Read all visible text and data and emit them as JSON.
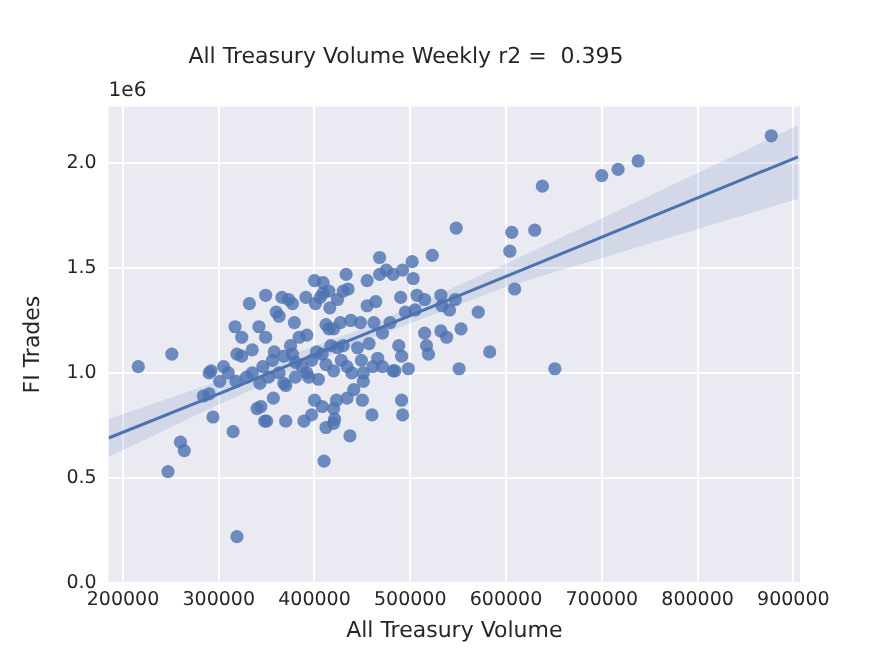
{
  "chart_data": {
    "type": "scatter",
    "title": "All Treasury Volume Weekly r2 =  0.395",
    "xlabel": "All Treasury Volume",
    "ylabel": "FI Trades",
    "annotations": [
      "1e6"
    ],
    "xlim": [
      185000,
      907000
    ],
    "xticks": [
      200000,
      300000,
      400000,
      500000,
      600000,
      700000,
      800000,
      900000
    ],
    "ylim": [
      0,
      2.27
    ],
    "yticks": [
      {
        "value": 0,
        "label": "0.0"
      },
      0.5,
      {
        "value": 1,
        "label": "1.0"
      },
      1.5,
      {
        "value": 2,
        "label": "2.0"
      }
    ],
    "grid": true,
    "legend": false,
    "series": [
      {
        "color": "#4c72b0",
        "marker": "circle",
        "x": [
          216000,
          251000,
          247000,
          260000,
          264000,
          319000,
          284000,
          290000,
          294000,
          290000,
          292000,
          301000,
          305000,
          310000,
          315000,
          317000,
          318000,
          319000,
          324000,
          332000,
          329000,
          335000,
          340000,
          344000,
          342000,
          348000,
          350000,
          349000,
          349000,
          346000,
          343000,
          352000,
          357000,
          358000,
          360000,
          363000,
          366000,
          368000,
          370000,
          370000,
          373000,
          377000,
          375000,
          379000,
          380000,
          384000,
          389000,
          391000,
          392000,
          394000,
          397000,
          400000,
          400000,
          401000,
          404000,
          406000,
          408000,
          409000,
          410000,
          412000,
          409000,
          415000,
          416000,
          412000,
          415000,
          417000,
          420000,
          421000,
          420000,
          423000,
          424000,
          427000,
          428000,
          430000,
          433000,
          435000,
          434000,
          437000,
          438000,
          439000,
          441000,
          445000,
          448000,
          450000,
          451000,
          449000,
          455000,
          455000,
          457000,
          460000,
          462000,
          464000,
          466000,
          468000,
          468000,
          471000,
          475000,
          479000,
          482000,
          484000,
          488000,
          490000,
          491000,
          491000,
          492000,
          492000,
          495000,
          502000,
          503000,
          505000,
          507000,
          515000,
          517000,
          519000,
          523000,
          532000,
          532000,
          533000,
          538000,
          541000,
          547000,
          548000,
          551000,
          553000,
          571000,
          583000,
          604000,
          606000,
          609000,
          630000,
          638000,
          651000,
          700000,
          717000,
          738000,
          877000,
          377000,
          387000,
          392000,
          397000,
          408000,
          412000,
          420000,
          424000,
          434000,
          335000,
          356000,
          324000,
          363000,
          368000,
          380000,
          402000,
          420000,
          430000,
          451000,
          461000,
          471000,
          482000,
          498000,
          515000
        ],
        "values": [
          1.03,
          1.09,
          0.53,
          0.67,
          0.63,
          0.22,
          0.89,
          0.9,
          0.79,
          1.0,
          1.01,
          0.96,
          1.03,
          1.0,
          0.72,
          1.22,
          0.96,
          1.09,
          1.08,
          1.33,
          0.98,
          1.11,
          0.83,
          0.84,
          1.22,
          0.77,
          0.77,
          1.37,
          1.17,
          1.03,
          0.95,
          0.98,
          0.88,
          1.1,
          1.29,
          1.27,
          1.36,
          1.08,
          0.77,
          0.94,
          1.35,
          1.33,
          1.13,
          1.24,
          0.98,
          1.17,
          0.77,
          1.36,
          1.18,
          0.98,
          0.8,
          1.44,
          0.87,
          1.33,
          0.97,
          1.36,
          0.84,
          1.43,
          0.58,
          0.74,
          1.38,
          1.39,
          1.31,
          1.23,
          1.21,
          1.13,
          0.76,
          0.78,
          0.83,
          0.87,
          1.35,
          1.24,
          1.06,
          1.39,
          1.47,
          1.4,
          0.88,
          0.7,
          1.25,
          1.0,
          0.92,
          1.12,
          1.24,
          0.87,
          0.96,
          1.06,
          1.32,
          1.44,
          1.14,
          0.8,
          1.24,
          1.34,
          1.07,
          1.55,
          1.47,
          1.19,
          1.49,
          1.24,
          1.47,
          1.01,
          1.13,
          1.36,
          1.08,
          0.87,
          0.8,
          1.49,
          1.29,
          1.53,
          1.45,
          1.3,
          1.37,
          1.35,
          1.13,
          1.09,
          1.56,
          1.37,
          1.2,
          1.32,
          1.17,
          1.3,
          1.35,
          1.69,
          1.02,
          1.21,
          1.29,
          1.1,
          1.58,
          1.67,
          1.4,
          1.68,
          1.89,
          1.02,
          1.94,
          1.97,
          2.01,
          2.13,
          1.09,
          1.03,
          1.0,
          1.06,
          1.09,
          1.04,
          1.01,
          1.12,
          1.03,
          1.0,
          1.06,
          1.17,
          1.0,
          0.95,
          1.05,
          1.1,
          1.21,
          1.13,
          1.0,
          1.03,
          1.03,
          1.01,
          1.02,
          1.19
        ]
      },
      {
        "type": "line",
        "marker": "none",
        "color": "#4c72b0",
        "x": [
          185000,
          300000,
          450000,
          600000,
          905000
        ],
        "values": [
          0.69,
          0.9,
          1.18,
          1.46,
          2.03
        ],
        "lower": [
          0.6,
          0.85,
          1.15,
          1.41,
          1.83
        ],
        "upper": [
          0.78,
          0.96,
          1.21,
          1.52,
          2.18
        ]
      }
    ]
  }
}
